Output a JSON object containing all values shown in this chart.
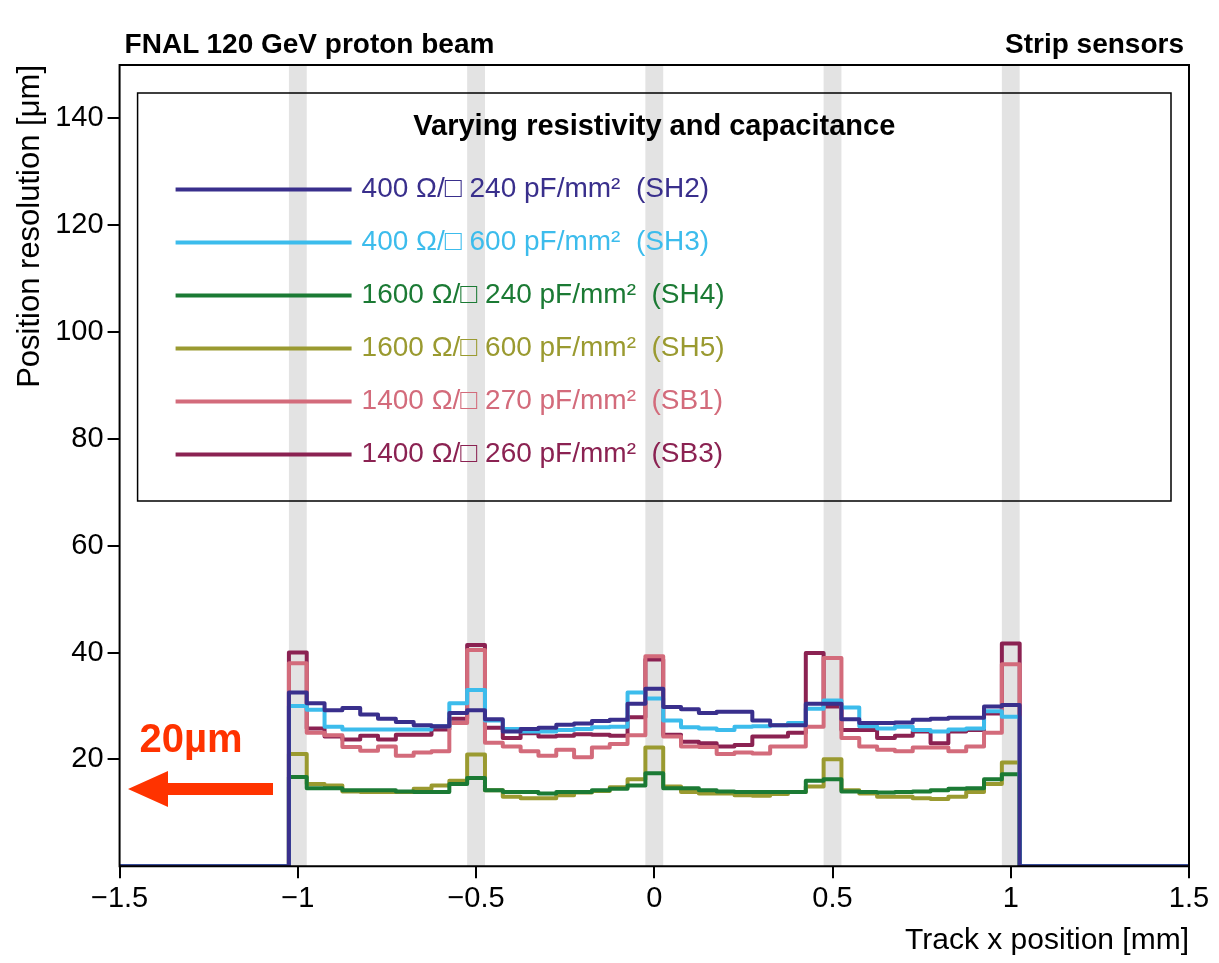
{
  "chart_data": {
    "type": "histogram",
    "title": "FNAL 120 GeV proton beam",
    "subtitle": "Strip sensors",
    "xlabel": "Track x position [mm]",
    "ylabel": "Position resolution [μm]",
    "legend_title": "Varying resistivity and capacitance",
    "annotations": [
      "20µm"
    ],
    "bins": [
      -1.5,
      -1.025,
      -0.975,
      -0.925,
      -0.875,
      -0.825,
      -0.775,
      -0.725,
      -0.675,
      -0.625,
      -0.575,
      -0.525,
      -0.475,
      -0.425,
      -0.375,
      -0.325,
      -0.275,
      -0.225,
      -0.175,
      -0.125,
      -0.075,
      -0.025,
      0.025,
      0.075,
      0.125,
      0.175,
      0.225,
      0.275,
      0.325,
      0.375,
      0.425,
      0.475,
      0.525,
      0.575,
      0.625,
      0.675,
      0.725,
      0.775,
      0.825,
      0.875,
      0.925,
      0.975,
      1.025,
      1.5
    ],
    "series": [
      {
        "name": "400 Ω/□ 240 pF/mm²  (SH2)",
        "color": "#392f8c",
        "values": [
          0,
          32.5,
          30.5,
          29.2,
          29.6,
          28.4,
          27.6,
          27,
          26.4,
          26.2,
          28.7,
          29.2,
          27.5,
          25.2,
          25.7,
          25.9,
          26.5,
          26.7,
          27.2,
          27.4,
          30.4,
          33.2,
          29.8,
          29.4,
          28.7,
          28.9,
          28.9,
          27.3,
          26.4,
          26.4,
          30.4,
          30.4,
          27.5,
          26.8,
          26.8,
          26.9,
          27.4,
          27.6,
          27.8,
          27.8,
          29.9,
          30.2,
          0
        ]
      },
      {
        "name": "400 Ω/□ 600 pF/mm²  (SH3)",
        "color": "#3cbcec",
        "values": [
          0,
          30,
          29.3,
          26.1,
          25.6,
          25.6,
          25.6,
          25.6,
          25.6,
          26.2,
          30.5,
          33,
          27.3,
          25.7,
          25.2,
          25.2,
          25.5,
          25.7,
          26,
          26.1,
          32.5,
          31.4,
          27.3,
          26,
          25.8,
          25.5,
          26.1,
          26.2,
          26.4,
          26.8,
          29.5,
          31,
          29.7,
          26.2,
          25.8,
          26.1,
          25.5,
          25.2,
          25.6,
          25.8,
          29,
          28,
          0
        ]
      },
      {
        "name": "1600 Ω/□ 240 pF/mm²  (SH4)",
        "color": "#1b7a34",
        "values": [
          0,
          16.7,
          14.6,
          14.6,
          14.2,
          14.2,
          14.2,
          14,
          13.9,
          13.9,
          15.4,
          16.5,
          14.2,
          13.9,
          13.9,
          13.6,
          13.9,
          13.9,
          14.2,
          14.5,
          15.1,
          17.4,
          14.6,
          14.6,
          14.2,
          14,
          13.9,
          13.9,
          13.9,
          13.9,
          16,
          16.3,
          14,
          13.9,
          13.8,
          13.9,
          14,
          14.2,
          14.5,
          14.6,
          16.3,
          17.2,
          0
        ]
      },
      {
        "name": "1600 Ω/□ 600 pF/mm²  (SH5)",
        "color": "#9a9a30",
        "values": [
          0,
          21,
          15.4,
          15.1,
          14,
          13.9,
          13.9,
          13.9,
          14.5,
          15.1,
          16,
          20.9,
          14.2,
          13,
          12.7,
          12.7,
          13.3,
          13.8,
          14.1,
          14.8,
          16.3,
          22.2,
          14.9,
          13.9,
          13.6,
          13.6,
          13.3,
          13.2,
          13.5,
          13.9,
          14.9,
          20,
          14.2,
          13.6,
          13,
          13,
          12.7,
          12.6,
          13,
          13.9,
          15.4,
          19.4,
          0
        ]
      },
      {
        "name": "1400 Ω/□ 270 pF/mm²  (SB1)",
        "color": "#d36b7b",
        "values": [
          0,
          38,
          25,
          24.5,
          22.3,
          21.6,
          22.4,
          20.7,
          21.3,
          21.5,
          26.8,
          40.5,
          23.1,
          22.4,
          21.5,
          20.7,
          21.8,
          20.4,
          22.2,
          22.9,
          24.5,
          39.3,
          24.3,
          22.4,
          22.3,
          21,
          21.3,
          21.1,
          22.4,
          22.4,
          26.1,
          39,
          24,
          22.4,
          21.8,
          21.5,
          22.2,
          22.2,
          21.5,
          22.4,
          25,
          37.8,
          0
        ]
      },
      {
        "name": "1400 Ω/□ 260 pF/mm²  (SB3)",
        "color": "#8b2252",
        "values": [
          0,
          40,
          25.8,
          24.3,
          23.7,
          24.4,
          23.7,
          24.6,
          24.6,
          25.6,
          27.6,
          41.4,
          25.9,
          24,
          24.9,
          24.3,
          24.4,
          24.7,
          24.6,
          24.4,
          27.9,
          38.7,
          24.6,
          23.3,
          23,
          22.4,
          22.7,
          24.3,
          24.3,
          25,
          39.9,
          29.9,
          25.5,
          25.5,
          24,
          24.4,
          25.2,
          23,
          25.2,
          25.5,
          28.6,
          41.7,
          0
        ]
      }
    ],
    "bands": [
      {
        "axis": "x",
        "from": -1.025,
        "to": -0.975,
        "color": "#e3e3e3"
      },
      {
        "axis": "x",
        "from": -0.525,
        "to": -0.475,
        "color": "#e3e3e3"
      },
      {
        "axis": "x",
        "from": -0.025,
        "to": 0.025,
        "color": "#e3e3e3"
      },
      {
        "axis": "x",
        "from": 0.475,
        "to": 0.525,
        "color": "#e3e3e3"
      },
      {
        "axis": "x",
        "from": 0.975,
        "to": 1.025,
        "color": "#e3e3e3"
      }
    ],
    "xlim": [
      -1.5,
      1.5
    ],
    "xticks": [
      {
        "value": -1.5,
        "label": "−1.5"
      },
      {
        "value": -1,
        "label": "−1"
      },
      {
        "value": -0.5,
        "label": "−0.5"
      },
      0,
      0.5,
      1,
      1.5
    ],
    "ylim": [
      0,
      150
    ],
    "yticks": [
      20,
      40,
      60,
      80,
      100,
      120,
      140
    ],
    "grid": false,
    "legend": "top"
  }
}
